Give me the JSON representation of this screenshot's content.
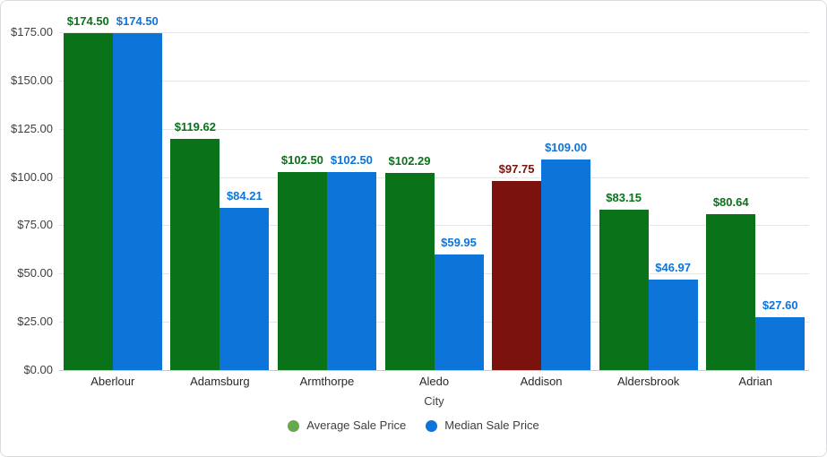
{
  "chart_data": {
    "type": "bar",
    "title": "",
    "categories": [
      "Aberlour",
      "Adamsburg",
      "Armthorpe",
      "Aledo",
      "Addison",
      "Aldersbrook",
      "Adrian"
    ],
    "series": [
      {
        "name": "Average Sale Price",
        "values": [
          174.5,
          119.62,
          102.5,
          102.29,
          97.75,
          83.15,
          80.64
        ],
        "value_labels": [
          "$174.50",
          "$119.62",
          "$102.50",
          "$102.29",
          "$97.75",
          "$83.15",
          "$80.64"
        ],
        "color": "#0a7219",
        "legend_color": "#64a850",
        "point_colors": [
          null,
          null,
          null,
          null,
          "#7b120e",
          null,
          null
        ]
      },
      {
        "name": "Median Sale Price",
        "values": [
          174.5,
          84.21,
          102.5,
          59.95,
          109.0,
          46.97,
          27.6
        ],
        "value_labels": [
          "$174.50",
          "$84.21",
          "$102.50",
          "$59.95",
          "$109.00",
          "$46.97",
          "$27.60"
        ],
        "color": "#0d74d9",
        "legend_color": "#0d74d9",
        "point_colors": [
          null,
          null,
          null,
          null,
          null,
          null,
          null
        ]
      }
    ],
    "xlabel": "City",
    "ylabel": "",
    "ylim": [
      0,
      175
    ],
    "ytick_step": 25,
    "ytick_labels": [
      "$0.00",
      "$25.00",
      "$50.00",
      "$75.00",
      "$100.00",
      "$125.00",
      "$150.00",
      "$175.00"
    ],
    "grid": true,
    "legend_position": "bottom"
  },
  "style": {
    "background": "#ffffff",
    "card_border_color": "#dadce0",
    "grid_color": "#e6e6e6",
    "baseline_color": "#c9c9c9",
    "tick_label_color": "#404040",
    "category_label_color": "#282828",
    "axis_title_color": "#3c4043",
    "legend_text_color": "#3c4043"
  }
}
